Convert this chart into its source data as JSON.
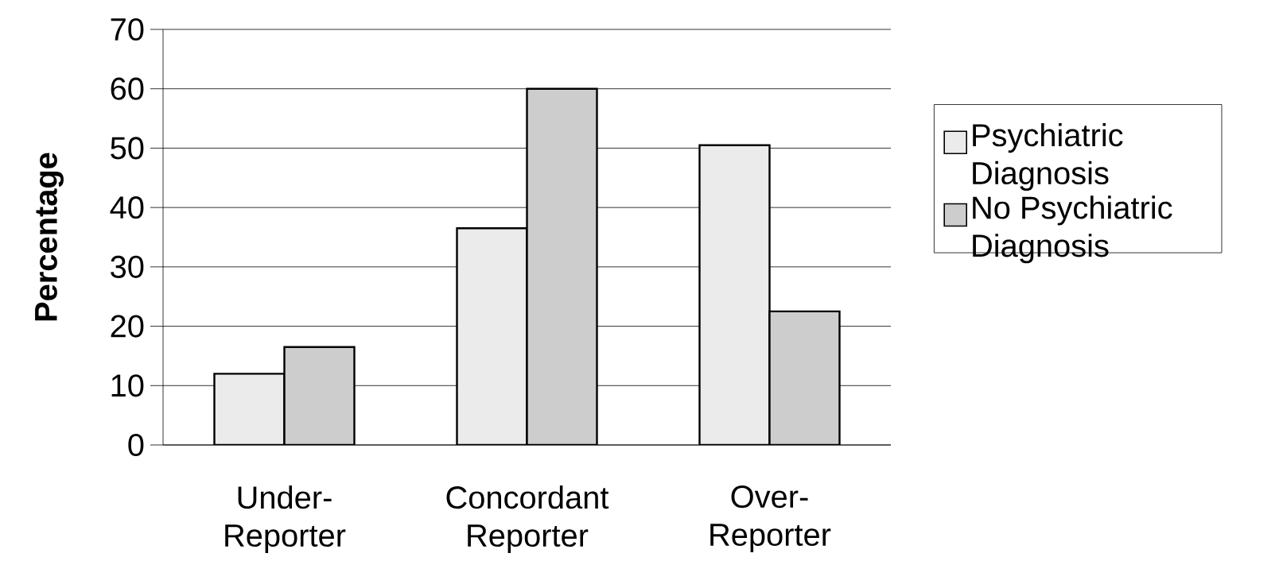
{
  "chart_data": {
    "type": "bar",
    "ylabel": "Percentage",
    "categories": [
      "Under- Reporter",
      "Concordant Reporter",
      "Over- Reporter"
    ],
    "series": [
      {
        "name": "Psychiatric Diagnosis",
        "color": "#ebebeb",
        "values": [
          12,
          36.5,
          50.5
        ]
      },
      {
        "name": "No Psychiatric Diagnosis",
        "color": "#cdcdcd",
        "values": [
          16.5,
          60,
          22.5
        ]
      }
    ],
    "ylim": [
      0,
      70
    ],
    "yticks": [
      0,
      10,
      20,
      30,
      40,
      50,
      60,
      70
    ],
    "grid": "y",
    "legend": "right"
  }
}
